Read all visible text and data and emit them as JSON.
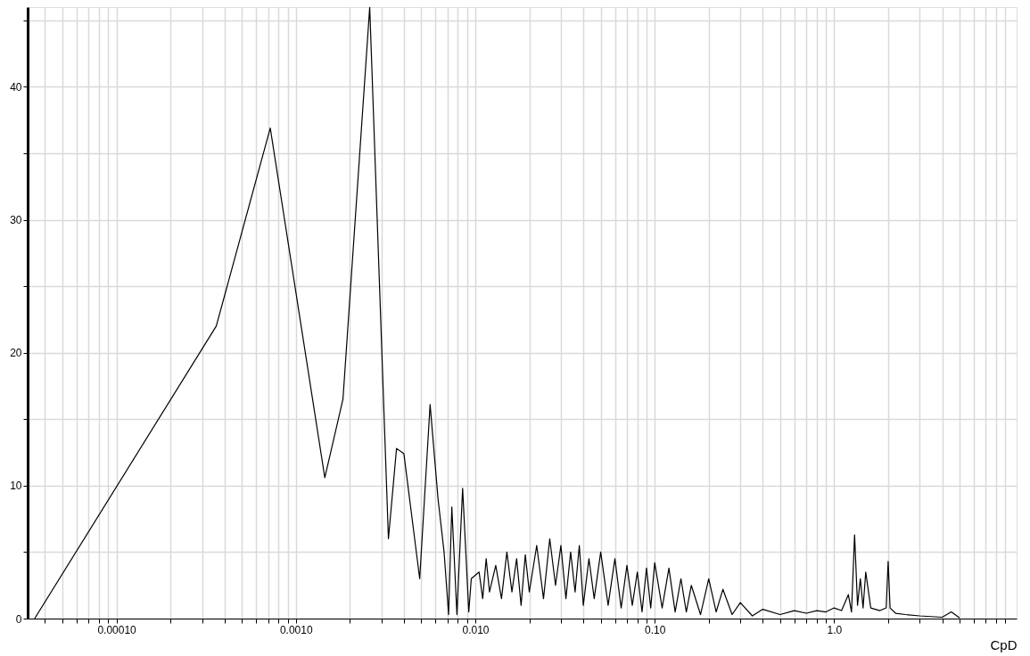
{
  "chart_data": {
    "type": "line",
    "xlabel": "CpD",
    "log": "x",
    "grid": true,
    "marker": "none",
    "line_style": "solid",
    "xlim": [
      3.2e-05,
      10.4
    ],
    "ylim": [
      0,
      46
    ],
    "xticks": [
      {
        "value": 4e-05,
        "label": null
      },
      {
        "value": 5e-05,
        "label": null
      },
      {
        "value": 6e-05,
        "label": null
      },
      {
        "value": 7e-05,
        "label": null
      },
      {
        "value": 8e-05,
        "label": null
      },
      {
        "value": 9e-05,
        "label": null
      },
      {
        "value": 0.0001,
        "label": "0.00010"
      },
      {
        "value": 0.0002,
        "label": null
      },
      {
        "value": 0.0003,
        "label": null
      },
      {
        "value": 0.0004,
        "label": null
      },
      {
        "value": 0.0005,
        "label": null
      },
      {
        "value": 0.0006,
        "label": null
      },
      {
        "value": 0.0007,
        "label": null
      },
      {
        "value": 0.0008,
        "label": null
      },
      {
        "value": 0.0009,
        "label": null
      },
      {
        "value": 0.001,
        "label": "0.0010"
      },
      {
        "value": 0.002,
        "label": null
      },
      {
        "value": 0.003,
        "label": null
      },
      {
        "value": 0.004,
        "label": null
      },
      {
        "value": 0.005,
        "label": null
      },
      {
        "value": 0.006,
        "label": null
      },
      {
        "value": 0.007,
        "label": null
      },
      {
        "value": 0.008,
        "label": null
      },
      {
        "value": 0.009,
        "label": null
      },
      {
        "value": 0.01,
        "label": "0.010"
      },
      {
        "value": 0.02,
        "label": null
      },
      {
        "value": 0.03,
        "label": null
      },
      {
        "value": 0.04,
        "label": null
      },
      {
        "value": 0.05,
        "label": null
      },
      {
        "value": 0.06,
        "label": null
      },
      {
        "value": 0.07,
        "label": null
      },
      {
        "value": 0.08,
        "label": null
      },
      {
        "value": 0.09,
        "label": null
      },
      {
        "value": 0.1,
        "label": "0.10"
      },
      {
        "value": 0.2,
        "label": null
      },
      {
        "value": 0.3,
        "label": null
      },
      {
        "value": 0.4,
        "label": null
      },
      {
        "value": 0.5,
        "label": null
      },
      {
        "value": 0.6,
        "label": null
      },
      {
        "value": 0.7,
        "label": null
      },
      {
        "value": 0.8,
        "label": null
      },
      {
        "value": 0.9,
        "label": null
      },
      {
        "value": 1,
        "label": "1.0"
      },
      {
        "value": 2,
        "label": null
      },
      {
        "value": 3,
        "label": null
      },
      {
        "value": 4,
        "label": null
      },
      {
        "value": 5,
        "label": null
      },
      {
        "value": 6,
        "label": null
      },
      {
        "value": 7,
        "label": null
      },
      {
        "value": 8,
        "label": null
      },
      {
        "value": 9,
        "label": null
      }
    ],
    "yticks": [
      0,
      {
        "value": 5,
        "label": null
      },
      10,
      {
        "value": 15,
        "label": null
      },
      20,
      {
        "value": 25,
        "label": null
      },
      30,
      {
        "value": 35,
        "label": null
      },
      40,
      {
        "value": 45,
        "label": null
      }
    ],
    "series": [
      {
        "color": "#000000",
        "x": [
          3.5e-05,
          0.00036,
          0.00072,
          0.00145,
          0.00183,
          0.00258,
          0.00328,
          0.00364,
          0.004,
          0.0049,
          0.0056,
          0.0062,
          0.0067,
          0.0071,
          0.0074,
          0.0079,
          0.0085,
          0.0092,
          0.0095,
          0.0105,
          0.011,
          0.0115,
          0.012,
          0.013,
          0.014,
          0.015,
          0.016,
          0.017,
          0.018,
          0.019,
          0.02,
          0.022,
          0.024,
          0.026,
          0.028,
          0.03,
          0.032,
          0.034,
          0.036,
          0.038,
          0.04,
          0.043,
          0.046,
          0.05,
          0.055,
          0.06,
          0.065,
          0.07,
          0.075,
          0.08,
          0.085,
          0.09,
          0.095,
          0.1,
          0.11,
          0.12,
          0.13,
          0.14,
          0.15,
          0.16,
          0.18,
          0.2,
          0.22,
          0.24,
          0.27,
          0.3,
          0.35,
          0.4,
          0.5,
          0.6,
          0.7,
          0.8,
          0.9,
          1.0,
          1.1,
          1.2,
          1.25,
          1.3,
          1.35,
          1.4,
          1.45,
          1.5,
          1.6,
          1.8,
          1.95,
          2.0,
          2.05,
          2.2,
          2.5,
          3.0,
          4.0,
          4.5,
          5.0
        ],
        "values": [
          0,
          22,
          36.9,
          10.6,
          16.5,
          46,
          6,
          12.8,
          12.4,
          3,
          16.1,
          9,
          5,
          0.3,
          8.4,
          0.3,
          9.8,
          0.5,
          3,
          3.5,
          1.5,
          4.5,
          2,
          4,
          1.5,
          5,
          2,
          4.5,
          1,
          4.8,
          2,
          5.5,
          1.5,
          6,
          2.5,
          5.5,
          1.5,
          5,
          2,
          5.5,
          1,
          4.5,
          1.5,
          5,
          1,
          4.5,
          0.8,
          4,
          1,
          3.5,
          0.5,
          3.8,
          0.8,
          4.2,
          0.8,
          3.8,
          0.5,
          3,
          0.5,
          2.5,
          0.3,
          3,
          0.5,
          2.2,
          0.3,
          1.2,
          0.2,
          0.7,
          0.3,
          0.6,
          0.4,
          0.6,
          0.5,
          0.8,
          0.6,
          1.8,
          0.5,
          6.3,
          1,
          3,
          0.8,
          3.5,
          0.8,
          0.6,
          0.8,
          4.3,
          0.8,
          0.4,
          0.3,
          0.2,
          0.1,
          0.5,
          0.05
        ]
      }
    ]
  }
}
